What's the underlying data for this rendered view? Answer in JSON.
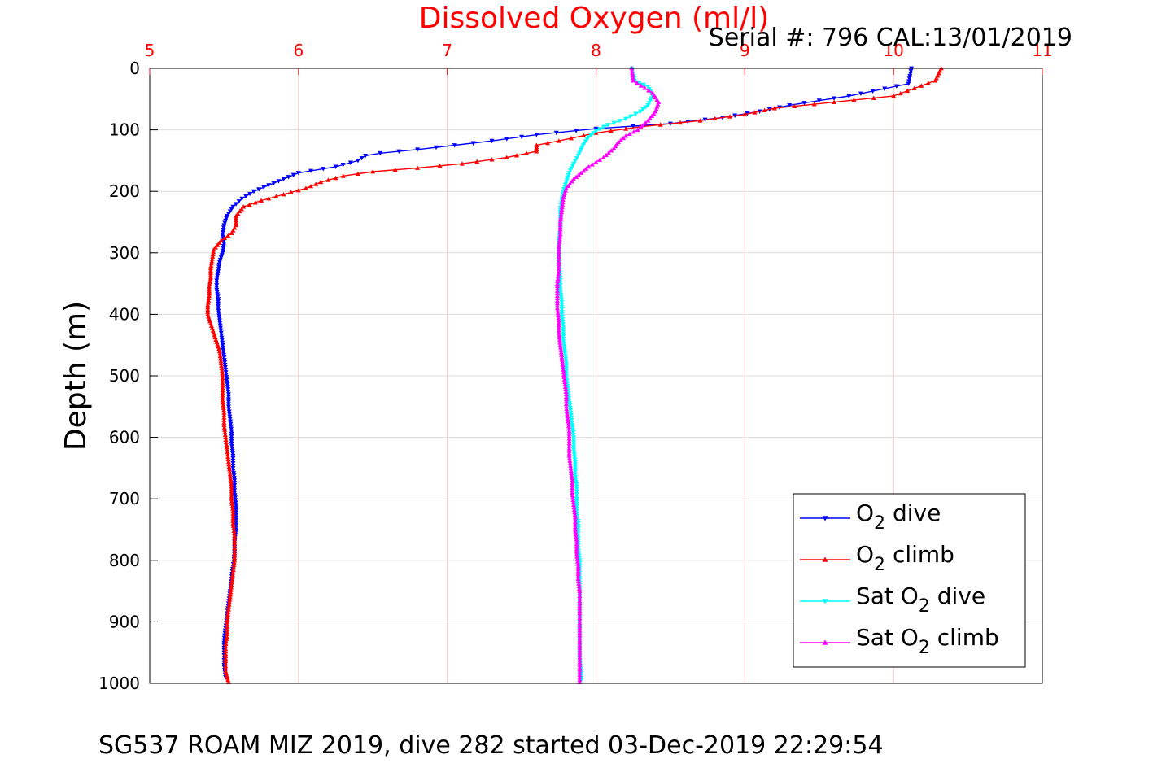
{
  "chart_data": {
    "type": "scatter",
    "title": "Dissolved Oxygen (ml/l)",
    "serial_label": "Serial #: 796  CAL:13/01/2019",
    "footer": "SG537 ROAM MIZ 2019, dive 282 started 03-Dec-2019 22:29:54",
    "ylabel": "Depth (m)",
    "xlim": [
      5,
      11
    ],
    "ylim": [
      0,
      1000
    ],
    "y_reversed": true,
    "x_axis_location": "top",
    "xticks": [
      "5",
      "6",
      "7",
      "8",
      "9",
      "10",
      "11"
    ],
    "yticks": [
      "0",
      "100",
      "200",
      "300",
      "400",
      "500",
      "600",
      "700",
      "800",
      "900",
      "1000"
    ],
    "grid": true,
    "legend_location": "bottom-right",
    "colors": {
      "title": "#ff0000",
      "x_tick": "#ff0000",
      "x_grid": "#ffc0c0",
      "y_grid": "#dcdcdc",
      "axis": "#000000"
    },
    "series": [
      {
        "legend": {
          "base": "O",
          "sub": "2",
          "suffix": " dive"
        },
        "color": "#0000ff",
        "marker": "triangle-down",
        "points": [
          [
            10.12,
            0
          ],
          [
            10.1,
            25
          ],
          [
            9.7,
            45
          ],
          [
            9.3,
            60
          ],
          [
            9.1,
            70
          ],
          [
            8.85,
            80
          ],
          [
            8.5,
            90
          ],
          [
            8.0,
            98
          ],
          [
            7.6,
            108
          ],
          [
            7.3,
            118
          ],
          [
            7.05,
            125
          ],
          [
            6.8,
            132
          ],
          [
            6.55,
            138
          ],
          [
            6.45,
            142
          ],
          [
            6.4,
            150
          ],
          [
            6.25,
            160
          ],
          [
            6.0,
            170
          ],
          [
            5.9,
            180
          ],
          [
            5.8,
            190
          ],
          [
            5.7,
            200
          ],
          [
            5.62,
            212
          ],
          [
            5.56,
            225
          ],
          [
            5.52,
            240
          ],
          [
            5.5,
            255
          ],
          [
            5.49,
            270
          ],
          [
            5.5,
            285
          ],
          [
            5.49,
            300
          ],
          [
            5.47,
            315
          ],
          [
            5.46,
            330
          ],
          [
            5.45,
            345
          ],
          [
            5.45,
            360
          ],
          [
            5.46,
            375
          ],
          [
            5.46,
            390
          ],
          [
            5.47,
            410
          ],
          [
            5.48,
            430
          ],
          [
            5.49,
            450
          ],
          [
            5.5,
            470
          ],
          [
            5.51,
            490
          ],
          [
            5.52,
            510
          ],
          [
            5.53,
            530
          ],
          [
            5.53,
            550
          ],
          [
            5.54,
            570
          ],
          [
            5.55,
            590
          ],
          [
            5.55,
            610
          ],
          [
            5.56,
            630
          ],
          [
            5.56,
            650
          ],
          [
            5.57,
            670
          ],
          [
            5.57,
            690
          ],
          [
            5.58,
            710
          ],
          [
            5.58,
            730
          ],
          [
            5.58,
            750
          ],
          [
            5.57,
            770
          ],
          [
            5.57,
            790
          ],
          [
            5.56,
            810
          ],
          [
            5.55,
            830
          ],
          [
            5.54,
            850
          ],
          [
            5.53,
            870
          ],
          [
            5.52,
            890
          ],
          [
            5.51,
            910
          ],
          [
            5.5,
            930
          ],
          [
            5.5,
            950
          ],
          [
            5.5,
            970
          ],
          [
            5.51,
            990
          ]
        ]
      },
      {
        "legend": {
          "base": "O",
          "sub": "2",
          "suffix": " climb"
        },
        "color": "#ff0000",
        "marker": "triangle-up",
        "points": [
          [
            10.32,
            0
          ],
          [
            10.28,
            20
          ],
          [
            10.0,
            45
          ],
          [
            9.6,
            55
          ],
          [
            9.2,
            65
          ],
          [
            9.0,
            75
          ],
          [
            8.7,
            85
          ],
          [
            8.3,
            95
          ],
          [
            8.0,
            105
          ],
          [
            7.75,
            118
          ],
          [
            7.6,
            125
          ],
          [
            7.6,
            135
          ],
          [
            7.4,
            145
          ],
          [
            7.1,
            155
          ],
          [
            6.8,
            162
          ],
          [
            6.5,
            168
          ],
          [
            6.3,
            175
          ],
          [
            6.15,
            185
          ],
          [
            6.05,
            195
          ],
          [
            5.9,
            205
          ],
          [
            5.75,
            215
          ],
          [
            5.63,
            225
          ],
          [
            5.58,
            240
          ],
          [
            5.58,
            255
          ],
          [
            5.55,
            268
          ],
          [
            5.48,
            280
          ],
          [
            5.43,
            295
          ],
          [
            5.42,
            310
          ],
          [
            5.41,
            325
          ],
          [
            5.41,
            340
          ],
          [
            5.4,
            355
          ],
          [
            5.4,
            370
          ],
          [
            5.39,
            385
          ],
          [
            5.39,
            400
          ],
          [
            5.41,
            415
          ],
          [
            5.43,
            430
          ],
          [
            5.45,
            445
          ],
          [
            5.47,
            460
          ],
          [
            5.48,
            480
          ],
          [
            5.49,
            500
          ],
          [
            5.49,
            520
          ],
          [
            5.49,
            540
          ],
          [
            5.5,
            560
          ],
          [
            5.5,
            580
          ],
          [
            5.51,
            600
          ],
          [
            5.52,
            620
          ],
          [
            5.53,
            640
          ],
          [
            5.54,
            660
          ],
          [
            5.55,
            680
          ],
          [
            5.55,
            700
          ],
          [
            5.56,
            720
          ],
          [
            5.56,
            740
          ],
          [
            5.57,
            760
          ],
          [
            5.57,
            780
          ],
          [
            5.57,
            800
          ],
          [
            5.56,
            820
          ],
          [
            5.55,
            840
          ],
          [
            5.54,
            860
          ],
          [
            5.53,
            880
          ],
          [
            5.52,
            900
          ],
          [
            5.52,
            920
          ],
          [
            5.51,
            940
          ],
          [
            5.51,
            960
          ],
          [
            5.51,
            980
          ],
          [
            5.53,
            998
          ]
        ]
      },
      {
        "legend": {
          "base": "Sat O",
          "sub": "2",
          "suffix": " dive"
        },
        "color": "#00ffff",
        "marker": "triangle-down",
        "points": [
          [
            8.24,
            0
          ],
          [
            8.26,
            20
          ],
          [
            8.35,
            30
          ],
          [
            8.38,
            45
          ],
          [
            8.35,
            60
          ],
          [
            8.3,
            70
          ],
          [
            8.2,
            82
          ],
          [
            8.08,
            92
          ],
          [
            8.0,
            102
          ],
          [
            7.95,
            112
          ],
          [
            7.92,
            122
          ],
          [
            7.9,
            132
          ],
          [
            7.88,
            142
          ],
          [
            7.85,
            155
          ],
          [
            7.82,
            170
          ],
          [
            7.8,
            185
          ],
          [
            7.78,
            200
          ],
          [
            7.77,
            215
          ],
          [
            7.76,
            230
          ],
          [
            7.76,
            245
          ],
          [
            7.76,
            260
          ],
          [
            7.75,
            280
          ],
          [
            7.75,
            300
          ],
          [
            7.75,
            320
          ],
          [
            7.76,
            340
          ],
          [
            7.76,
            360
          ],
          [
            7.77,
            380
          ],
          [
            7.77,
            400
          ],
          [
            7.78,
            420
          ],
          [
            7.78,
            440
          ],
          [
            7.79,
            460
          ],
          [
            7.8,
            480
          ],
          [
            7.8,
            500
          ],
          [
            7.81,
            520
          ],
          [
            7.82,
            540
          ],
          [
            7.83,
            560
          ],
          [
            7.84,
            580
          ],
          [
            7.85,
            600
          ],
          [
            7.85,
            620
          ],
          [
            7.86,
            640
          ],
          [
            7.86,
            660
          ],
          [
            7.87,
            680
          ],
          [
            7.87,
            700
          ],
          [
            7.87,
            720
          ],
          [
            7.88,
            740
          ],
          [
            7.88,
            760
          ],
          [
            7.88,
            780
          ],
          [
            7.89,
            800
          ],
          [
            7.89,
            820
          ],
          [
            7.89,
            840
          ],
          [
            7.89,
            860
          ],
          [
            7.89,
            880
          ],
          [
            7.89,
            900
          ],
          [
            7.89,
            920
          ],
          [
            7.89,
            940
          ],
          [
            7.89,
            960
          ],
          [
            7.9,
            980
          ],
          [
            7.9,
            995
          ]
        ]
      },
      {
        "legend": {
          "base": "Sat O",
          "sub": "2",
          "suffix": " climb"
        },
        "color": "#ff00ff",
        "marker": "triangle-up",
        "points": [
          [
            8.24,
            0
          ],
          [
            8.25,
            20
          ],
          [
            8.38,
            40
          ],
          [
            8.42,
            55
          ],
          [
            8.4,
            70
          ],
          [
            8.35,
            85
          ],
          [
            8.28,
            100
          ],
          [
            8.2,
            110
          ],
          [
            8.15,
            120
          ],
          [
            8.12,
            130
          ],
          [
            8.05,
            145
          ],
          [
            7.95,
            160
          ],
          [
            7.9,
            170
          ],
          [
            7.85,
            180
          ],
          [
            7.8,
            195
          ],
          [
            7.78,
            210
          ],
          [
            7.77,
            230
          ],
          [
            7.76,
            250
          ],
          [
            7.76,
            270
          ],
          [
            7.75,
            290
          ],
          [
            7.75,
            310
          ],
          [
            7.75,
            330
          ],
          [
            7.74,
            350
          ],
          [
            7.74,
            370
          ],
          [
            7.74,
            390
          ],
          [
            7.75,
            410
          ],
          [
            7.75,
            430
          ],
          [
            7.76,
            450
          ],
          [
            7.77,
            470
          ],
          [
            7.78,
            490
          ],
          [
            7.79,
            510
          ],
          [
            7.8,
            530
          ],
          [
            7.8,
            550
          ],
          [
            7.81,
            570
          ],
          [
            7.82,
            590
          ],
          [
            7.82,
            610
          ],
          [
            7.82,
            630
          ],
          [
            7.83,
            650
          ],
          [
            7.84,
            670
          ],
          [
            7.84,
            690
          ],
          [
            7.85,
            710
          ],
          [
            7.86,
            730
          ],
          [
            7.86,
            750
          ],
          [
            7.87,
            770
          ],
          [
            7.87,
            790
          ],
          [
            7.88,
            810
          ],
          [
            7.88,
            830
          ],
          [
            7.89,
            850
          ],
          [
            7.89,
            870
          ],
          [
            7.89,
            890
          ],
          [
            7.89,
            910
          ],
          [
            7.89,
            930
          ],
          [
            7.89,
            950
          ],
          [
            7.89,
            970
          ],
          [
            7.89,
            998
          ]
        ]
      }
    ]
  }
}
